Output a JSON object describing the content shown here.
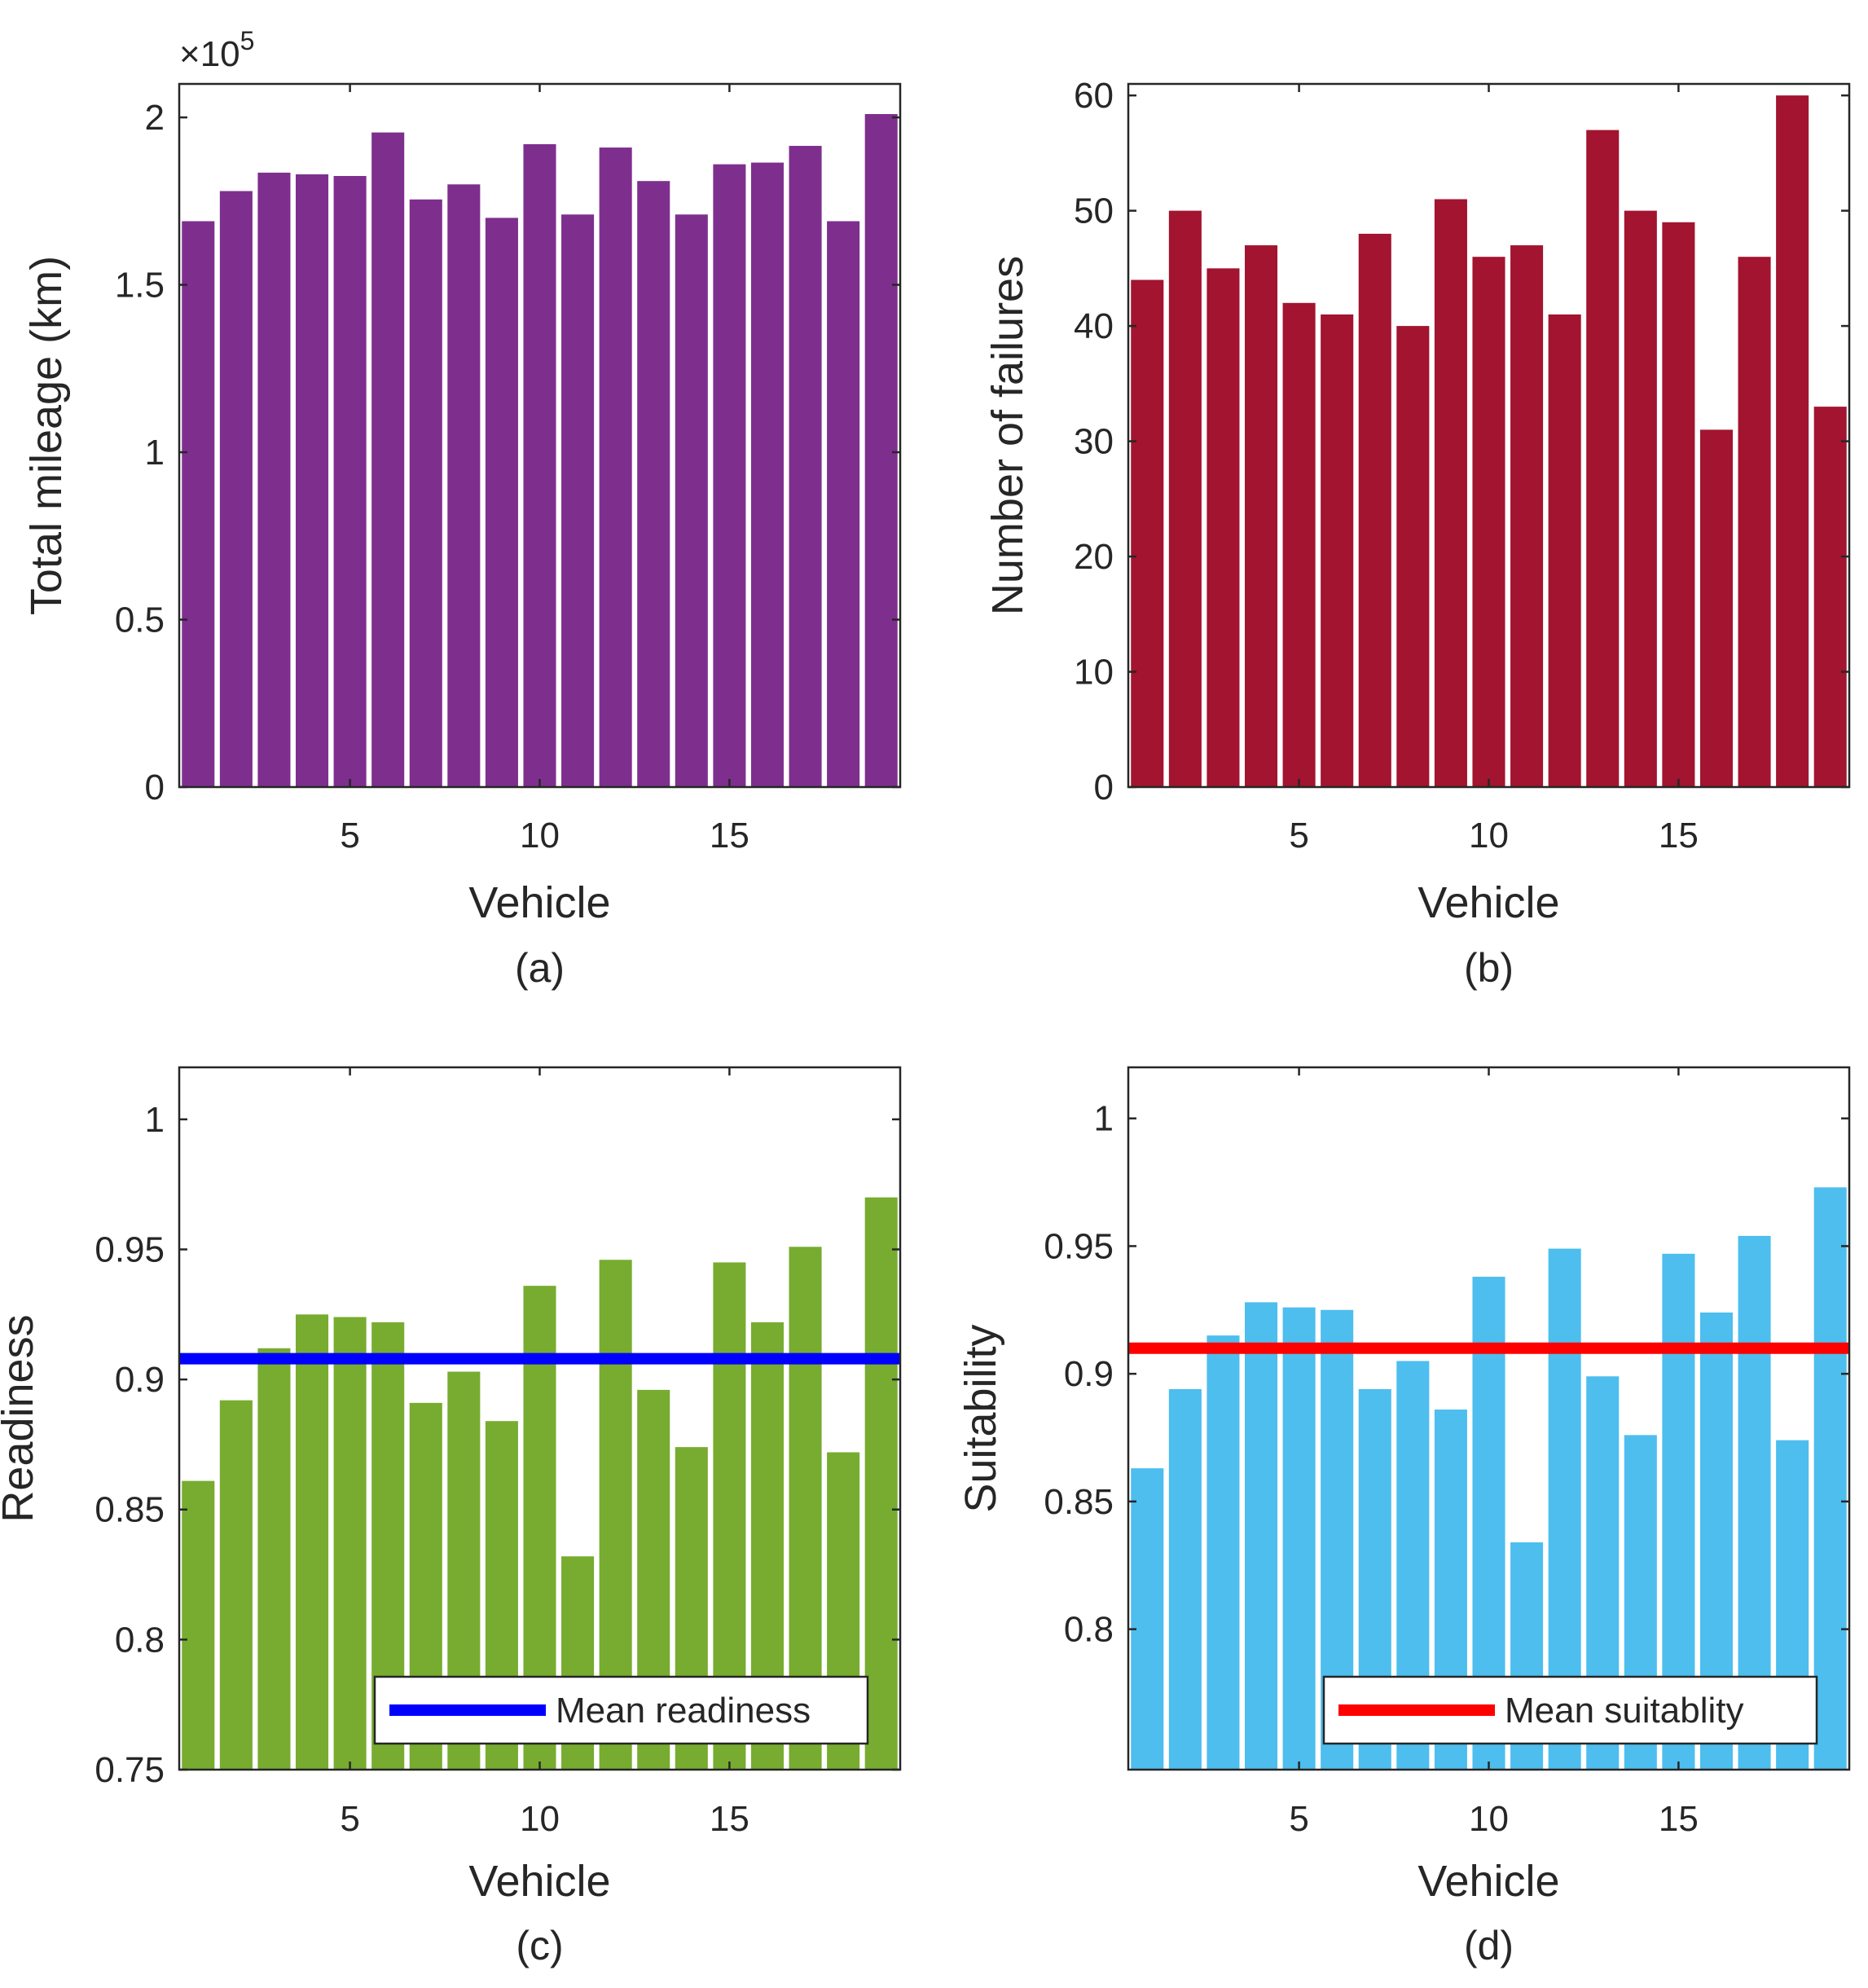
{
  "chart_data": [
    {
      "panel_label": "(a)",
      "type": "bar",
      "xlabel": "Vehicle",
      "ylabel": "Total mileage (km)",
      "y_exponent_label": "×10",
      "y_exponent_power": "5",
      "categories": [
        1,
        2,
        3,
        4,
        5,
        6,
        7,
        8,
        9,
        10,
        11,
        12,
        13,
        14,
        15,
        16,
        17,
        18,
        19
      ],
      "values": [
        1.69,
        1.78,
        1.835,
        1.83,
        1.825,
        1.955,
        1.755,
        1.8,
        1.7,
        1.92,
        1.71,
        1.91,
        1.81,
        1.71,
        1.86,
        1.865,
        1.915,
        1.69,
        2.01
      ],
      "xlim": [
        0.5,
        19.5
      ],
      "ylim": [
        0,
        2.1
      ],
      "xticks": [
        5,
        10,
        15
      ],
      "xtick_labels": [
        "5",
        "10",
        "15"
      ],
      "yticks": [
        0,
        0.5,
        1,
        1.5,
        2
      ],
      "ytick_labels": [
        "0",
        "0.5",
        "1",
        "1.5",
        "2"
      ],
      "bar_color": "#7e2f8e",
      "legend": null
    },
    {
      "panel_label": "(b)",
      "type": "bar",
      "xlabel": "Vehicle",
      "ylabel": "Number of failures",
      "categories": [
        1,
        2,
        3,
        4,
        5,
        6,
        7,
        8,
        9,
        10,
        11,
        12,
        13,
        14,
        15,
        16,
        17,
        18,
        19
      ],
      "values": [
        44,
        50,
        45,
        47,
        42,
        41,
        48,
        40,
        51,
        46,
        47,
        41,
        57,
        50,
        49,
        31,
        46,
        60,
        33
      ],
      "xlim": [
        0.5,
        19.5
      ],
      "ylim": [
        0,
        61
      ],
      "xticks": [
        5,
        10,
        15
      ],
      "xtick_labels": [
        "5",
        "10",
        "15"
      ],
      "yticks": [
        0,
        10,
        20,
        30,
        40,
        50,
        60
      ],
      "ytick_labels": [
        "0",
        "10",
        "20",
        "30",
        "40",
        "50",
        "60"
      ],
      "bar_color": "#a2142f",
      "legend": null
    },
    {
      "panel_label": "(c)",
      "type": "bar",
      "xlabel": "Vehicle",
      "ylabel": "Readiness",
      "categories": [
        1,
        2,
        3,
        4,
        5,
        6,
        7,
        8,
        9,
        10,
        11,
        12,
        13,
        14,
        15,
        16,
        17,
        18,
        19
      ],
      "values": [
        0.861,
        0.892,
        0.912,
        0.925,
        0.924,
        0.922,
        0.891,
        0.903,
        0.884,
        0.936,
        0.832,
        0.946,
        0.896,
        0.874,
        0.945,
        0.922,
        0.951,
        0.872,
        0.97
      ],
      "xlim": [
        0.5,
        19.5
      ],
      "ylim": [
        0.75,
        1.02
      ],
      "xticks": [
        5,
        10,
        15
      ],
      "xtick_labels": [
        "5",
        "10",
        "15"
      ],
      "yticks": [
        0.75,
        0.8,
        0.85,
        0.9,
        0.95,
        1
      ],
      "ytick_labels": [
        "0.75",
        "0.8",
        "0.85",
        "0.9",
        "0.95",
        "1"
      ],
      "bar_color": "#77ac30",
      "mean_line": {
        "value": 0.908,
        "color": "#0000ff"
      },
      "legend": {
        "label": "Mean readiness",
        "position": "bottom-right"
      }
    },
    {
      "panel_label": "(d)",
      "type": "bar",
      "xlabel": "Vehicle",
      "ylabel": "Suitability",
      "categories": [
        1,
        2,
        3,
        4,
        5,
        6,
        7,
        8,
        9,
        10,
        11,
        12,
        13,
        14,
        15,
        16,
        17,
        18,
        19
      ],
      "values": [
        0.863,
        0.894,
        0.915,
        0.928,
        0.926,
        0.925,
        0.894,
        0.905,
        0.886,
        0.938,
        0.834,
        0.949,
        0.899,
        0.876,
        0.947,
        0.924,
        0.954,
        0.874,
        0.973
      ],
      "xlim": [
        0.5,
        19.5
      ],
      "ylim": [
        0.745,
        1.02
      ],
      "xticks": [
        5,
        10,
        15
      ],
      "xtick_labels": [
        "5",
        "10",
        "15"
      ],
      "yticks": [
        0.8,
        0.85,
        0.9,
        0.95,
        1
      ],
      "ytick_labels": [
        "0.8",
        "0.85",
        "0.9",
        "0.95",
        "1"
      ],
      "bar_color": "#4dbeee",
      "mean_line": {
        "value": 0.91,
        "color": "#ff0000"
      },
      "legend": {
        "label": "Mean suitablity",
        "position": "bottom-right"
      }
    }
  ]
}
